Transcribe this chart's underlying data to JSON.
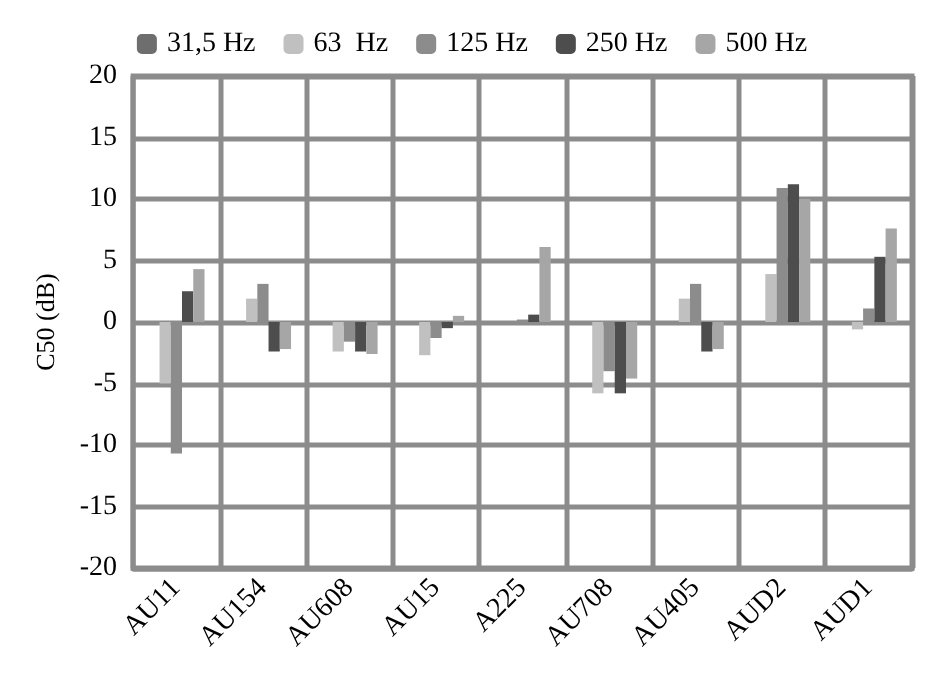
{
  "chart_data": {
    "type": "bar",
    "ylabel": "C50 (dB)",
    "categories": [
      "AU11",
      "AU154",
      "AU608",
      "AU15",
      "A225",
      "AU708",
      "AU405",
      "AUD2",
      "AUD1"
    ],
    "series": [
      {
        "name": "31,5 Hz",
        "color": "#6e6e6e",
        "values": [
          null,
          null,
          null,
          null,
          null,
          null,
          null,
          null,
          null
        ]
      },
      {
        "name": "63  Hz",
        "color": "#c0c0c0",
        "values": [
          -5,
          1.9,
          -2.4,
          -2.7,
          null,
          -5.8,
          1.9,
          3.9,
          -0.6
        ]
      },
      {
        "name": "125 Hz",
        "color": "#8c8c8c",
        "values": [
          -10.7,
          3.1,
          -1.6,
          -1.3,
          0.2,
          -4,
          3.1,
          10.9,
          1.1
        ]
      },
      {
        "name": "250 Hz",
        "color": "#4d4d4d",
        "values": [
          2.5,
          -2.4,
          -2.4,
          -0.5,
          0.6,
          -5.8,
          -2.4,
          11.2,
          5.3
        ]
      },
      {
        "name": "500 Hz",
        "color": "#a6a6a6",
        "values": [
          4.3,
          -2.2,
          -2.6,
          0.5,
          6.1,
          -4.6,
          -2.2,
          10,
          7.6
        ]
      }
    ],
    "ylim": [
      -20,
      20
    ],
    "yticks": [
      -20,
      -15,
      -10,
      -5,
      0,
      5,
      10,
      15,
      20
    ],
    "grid": true,
    "legend": "top"
  }
}
